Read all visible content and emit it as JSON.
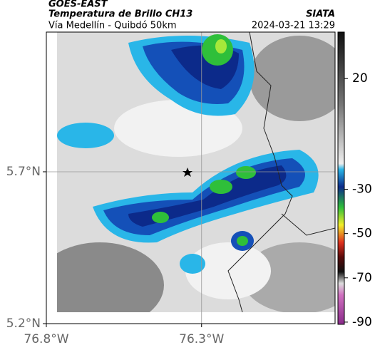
{
  "header": {
    "source": "GOES-EAST",
    "title": "Temperatura de Brillo CH13",
    "org": "SIATA",
    "subtitle": "Vía Medellín - Quibdó 50km",
    "timestamp": "2024-03-21 13:29"
  },
  "map": {
    "xlim": [
      -76.8,
      -75.87
    ],
    "ylim": [
      5.2,
      6.16
    ],
    "xticks": [
      {
        "value": -76.8,
        "label": "76.8°W"
      },
      {
        "value": -76.3,
        "label": "76.3°W"
      }
    ],
    "yticks": [
      {
        "value": 5.2,
        "label": "5.2°N"
      },
      {
        "value": 5.7,
        "label": "5.7°N"
      }
    ],
    "grid": true
  },
  "colorbar": {
    "lim": [
      -91,
      41
    ],
    "ticks": [
      20,
      -30,
      -50,
      -70,
      -90
    ]
  }
}
